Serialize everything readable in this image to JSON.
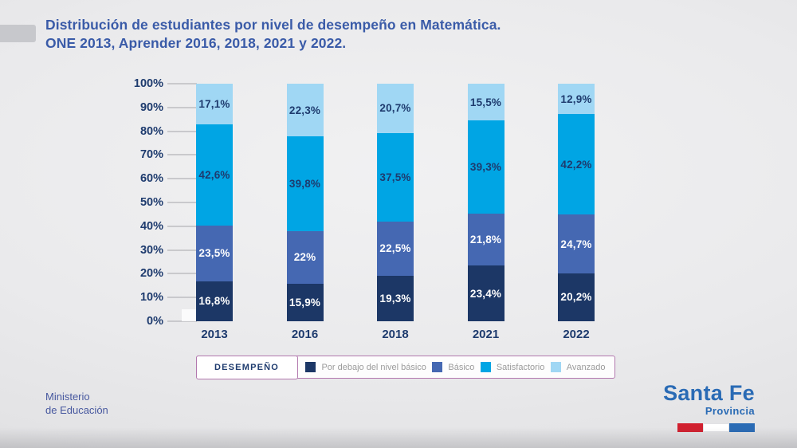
{
  "header": {
    "title_line1": "Distribución de estudiantes por nivel de desempeño en Matemática.",
    "title_line2": "ONE 2013, Aprender 2016, 2018, 2021 y 2022."
  },
  "chart_data": {
    "type": "bar",
    "stacked": true,
    "title": "Distribución de estudiantes por nivel de desempeño en Matemática. ONE 2013, Aprender 2016, 2018, 2021 y 2022.",
    "categories": [
      "2013",
      "2016",
      "2018",
      "2021",
      "2022"
    ],
    "series": [
      {
        "name": "Por debajo del nivel básico",
        "color": "#1c3766",
        "label_color": "#ffffff",
        "values": [
          16.8,
          15.9,
          19.3,
          23.4,
          20.2
        ],
        "labels": [
          "16,8%",
          "15,9%",
          "19,3%",
          "23,4%",
          "20,2%"
        ]
      },
      {
        "name": "Básico",
        "color": "#4568b2",
        "label_color": "#ffffff",
        "values": [
          23.5,
          22,
          22.5,
          21.8,
          24.7
        ],
        "labels": [
          "23,5%",
          "22%",
          "22,5%",
          "21,8%",
          "24,7%"
        ]
      },
      {
        "name": "Satisfactorio",
        "color": "#00a5e4",
        "label_color": "#1e3b6e",
        "values": [
          42.6,
          39.8,
          37.5,
          39.3,
          42.2
        ],
        "labels": [
          "42,6%",
          "39,8%",
          "37,5%",
          "39,3%",
          "42,2%"
        ]
      },
      {
        "name": "Avanzado",
        "color": "#a0d7f4",
        "label_color": "#1e3b6e",
        "values": [
          17.1,
          22.3,
          20.7,
          15.5,
          12.9
        ],
        "labels": [
          "17,1%",
          "22,3%",
          "20,7%",
          "15,5%",
          "12,9%"
        ]
      }
    ],
    "y_ticks": [
      "100%",
      "90%",
      "80%",
      "70%",
      "60%",
      "50%",
      "40%",
      "30%",
      "20%",
      "10%",
      "0%"
    ],
    "ylim": [
      0,
      100
    ],
    "grid": "axis-ticks-only",
    "legend_position": "bottom",
    "legend_title": "DESEMPEÑO"
  },
  "footer": {
    "ministry_line1": "Ministerio",
    "ministry_line2": "de Educación",
    "logo_name": "Santa Fe",
    "logo_subtitle": "Provincia",
    "flag_colors": [
      "#d1202f",
      "#ffffff",
      "#2a6bb5"
    ]
  }
}
